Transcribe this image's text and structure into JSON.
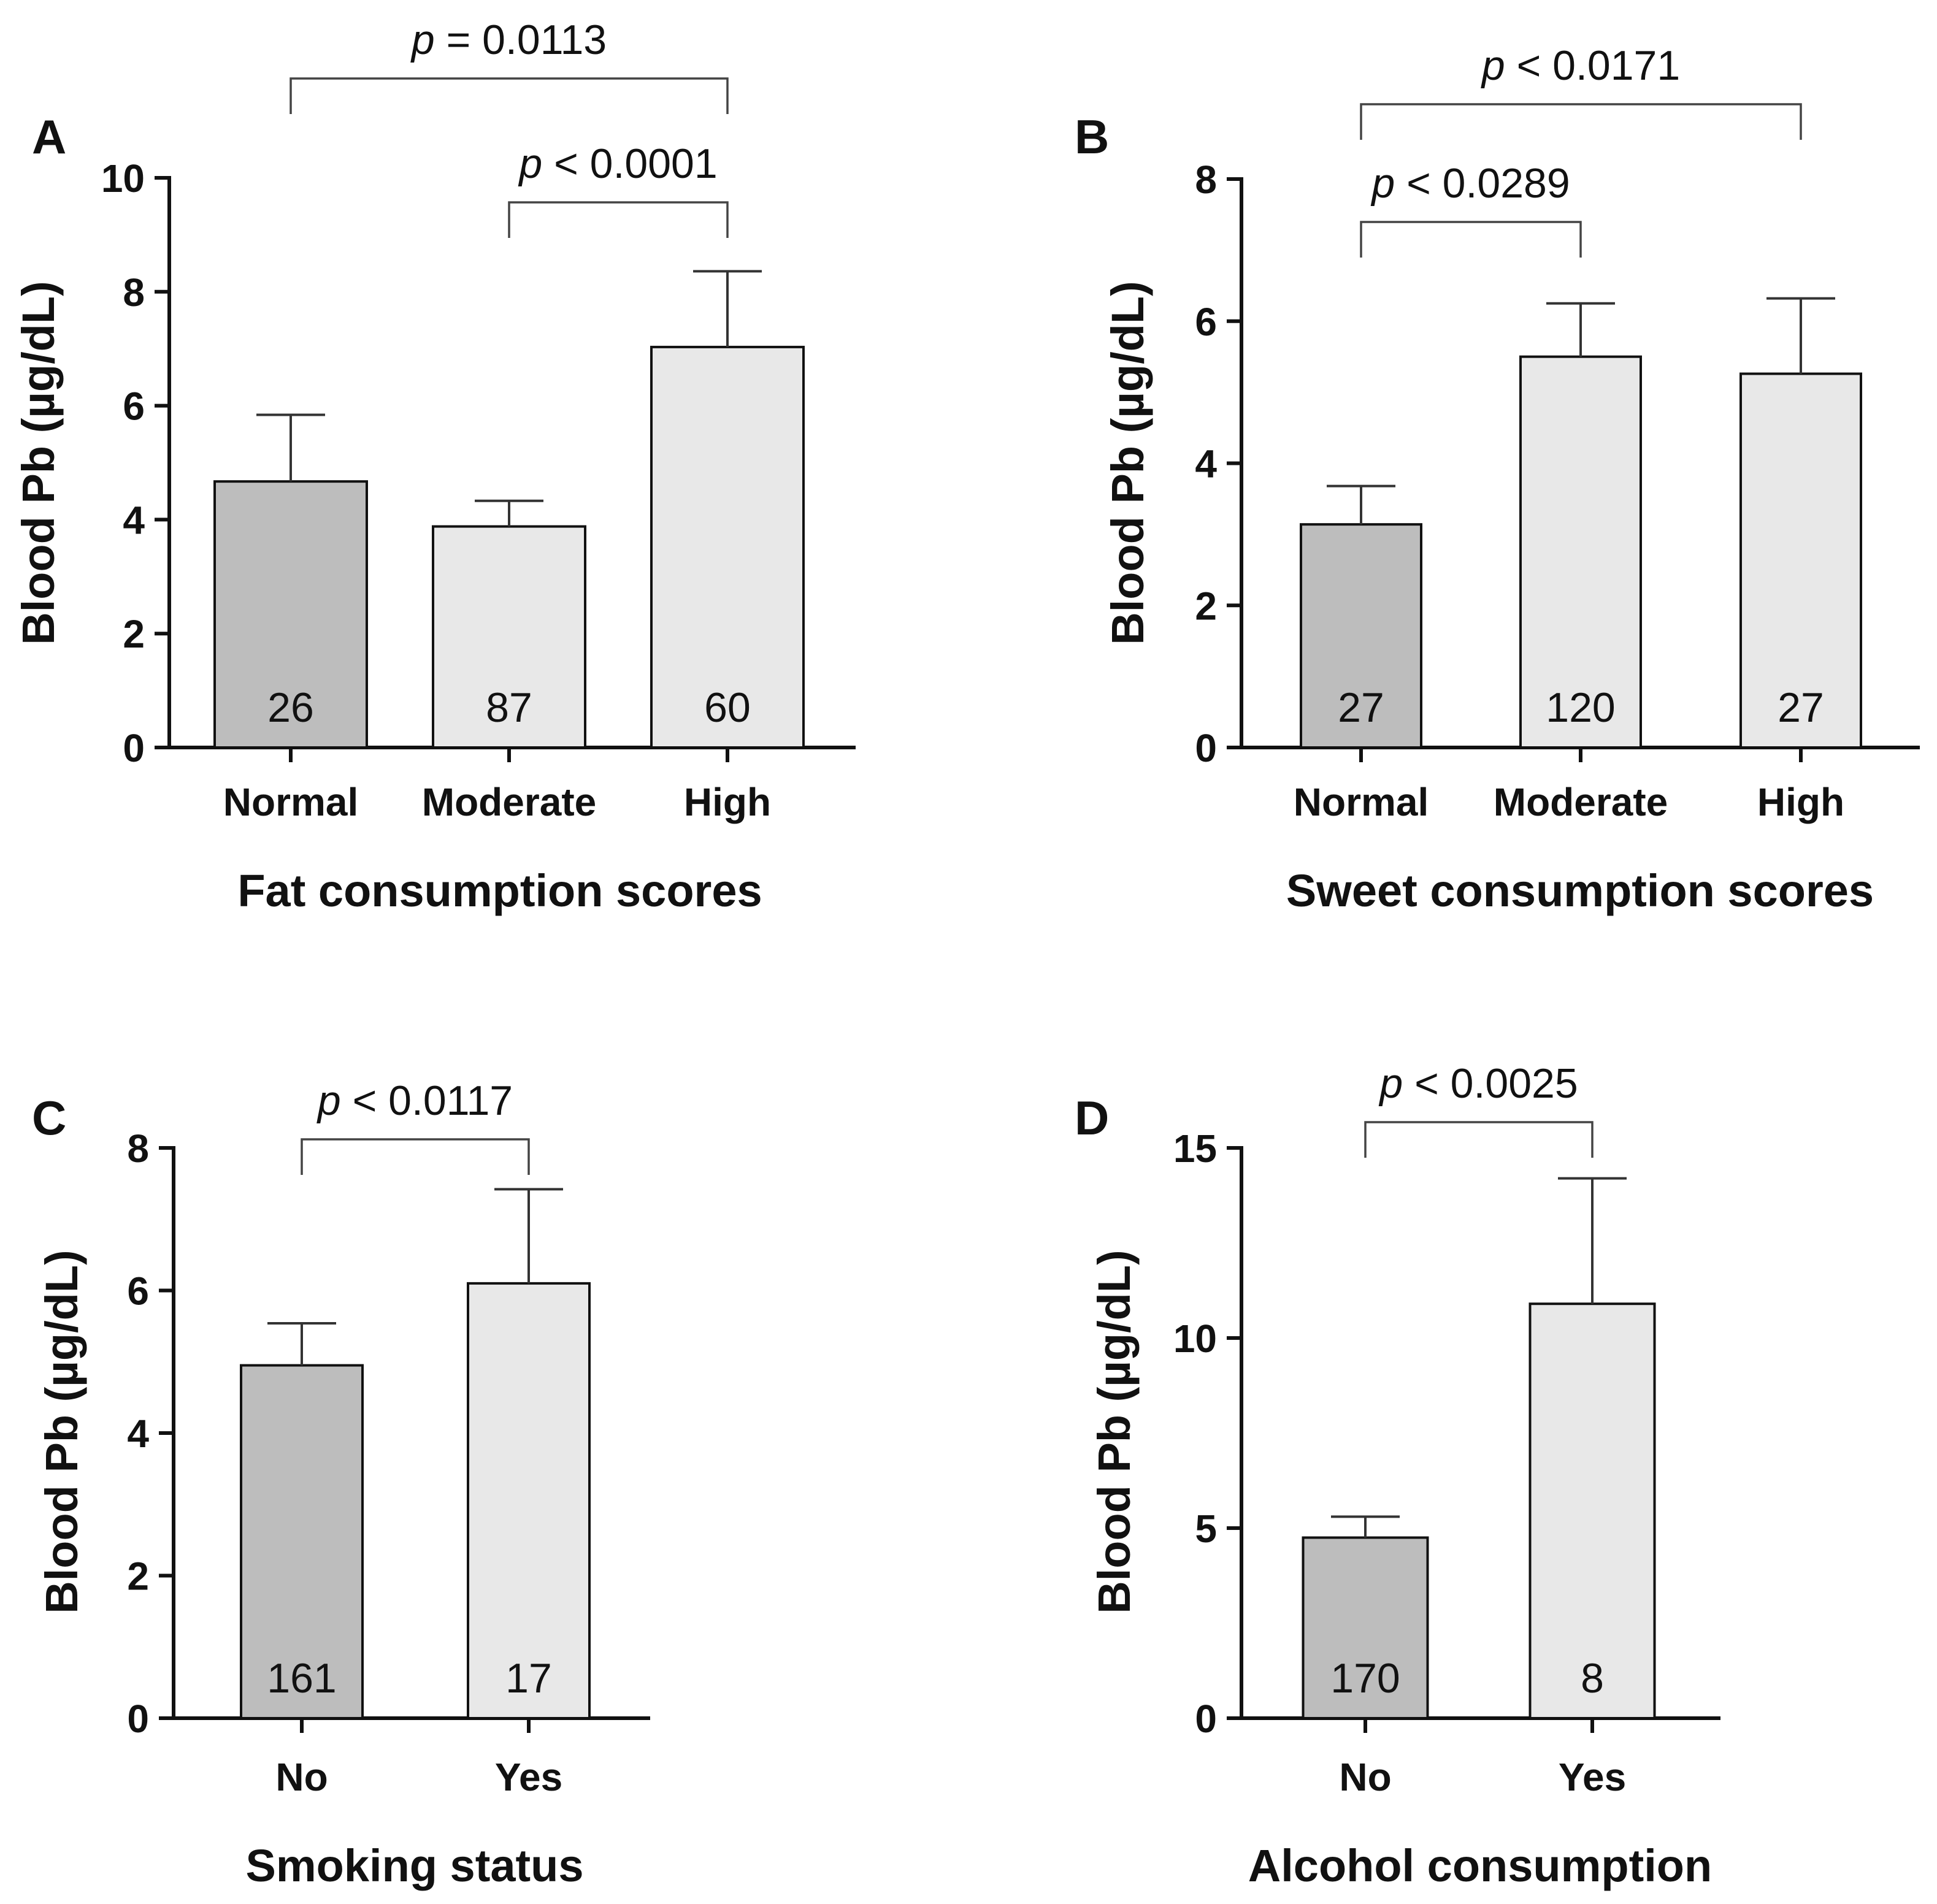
{
  "colors": {
    "dark_bar": "#bdbdbd",
    "light_bar": "#e8e8e8"
  },
  "chart_data": [
    {
      "panel": "A",
      "type": "bar",
      "categories": [
        "Normal",
        "Moderate",
        "High"
      ],
      "values": [
        4.67,
        3.88,
        7.03
      ],
      "errors": [
        1.17,
        0.45,
        1.33
      ],
      "n": [
        "26",
        "87",
        "60"
      ],
      "bar_colors": [
        "dark",
        "light",
        "light"
      ],
      "xlabel": "Fat consumption scores",
      "ylabel": "Blood Pb (µg/dL)",
      "ylim": [
        0,
        10
      ],
      "yticks": [
        0,
        2,
        4,
        6,
        8,
        10
      ],
      "comparisons": [
        {
          "from": 0,
          "to": 2,
          "p_symbol": "p",
          "p_text": " = 0.0113",
          "level": 1
        },
        {
          "from": 1,
          "to": 2,
          "p_symbol": "p",
          "p_text": " < 0.0001",
          "level": 0
        }
      ]
    },
    {
      "panel": "B",
      "type": "bar",
      "categories": [
        "Normal",
        "Moderate",
        "High"
      ],
      "values": [
        3.14,
        5.5,
        5.26
      ],
      "errors": [
        0.54,
        0.75,
        1.06
      ],
      "n": [
        "27",
        "120",
        "27"
      ],
      "bar_colors": [
        "dark",
        "light",
        "light"
      ],
      "xlabel": "Sweet consumption scores",
      "ylabel": "Blood Pb (µg/dL)",
      "ylim": [
        0,
        8
      ],
      "yticks": [
        0,
        2,
        4,
        6,
        8
      ],
      "comparisons": [
        {
          "from": 0,
          "to": 2,
          "p_symbol": "p",
          "p_text": " < 0.0171",
          "level": 1
        },
        {
          "from": 0,
          "to": 1,
          "p_symbol": "p",
          "p_text": " < 0.0289",
          "level": 0
        }
      ]
    },
    {
      "panel": "C",
      "type": "bar",
      "categories": [
        "No",
        "Yes"
      ],
      "values": [
        4.95,
        6.1
      ],
      "errors": [
        0.59,
        1.32
      ],
      "n": [
        "161",
        "17"
      ],
      "bar_colors": [
        "dark",
        "light"
      ],
      "xlabel": "Smoking status",
      "ylabel": "Blood Pb (µg/dL)",
      "ylim": [
        0,
        8
      ],
      "yticks": [
        0,
        2,
        4,
        6,
        8
      ],
      "comparisons": [
        {
          "from": 0,
          "to": 1,
          "p_symbol": "p",
          "p_text": " < 0.0117",
          "level": 0
        }
      ]
    },
    {
      "panel": "D",
      "type": "bar",
      "categories": [
        "No",
        "Yes"
      ],
      "values": [
        4.75,
        10.9
      ],
      "errors": [
        0.55,
        3.3
      ],
      "n": [
        "170",
        "8"
      ],
      "bar_colors": [
        "dark",
        "light"
      ],
      "xlabel": "Alcohol consumption",
      "ylabel": "Blood Pb (µg/dL)",
      "ylim": [
        0,
        15
      ],
      "yticks": [
        0,
        5,
        10,
        15
      ],
      "comparisons": [
        {
          "from": 0,
          "to": 1,
          "p_symbol": "p",
          "p_text": " < 0.0025",
          "level": 0
        }
      ]
    }
  ]
}
